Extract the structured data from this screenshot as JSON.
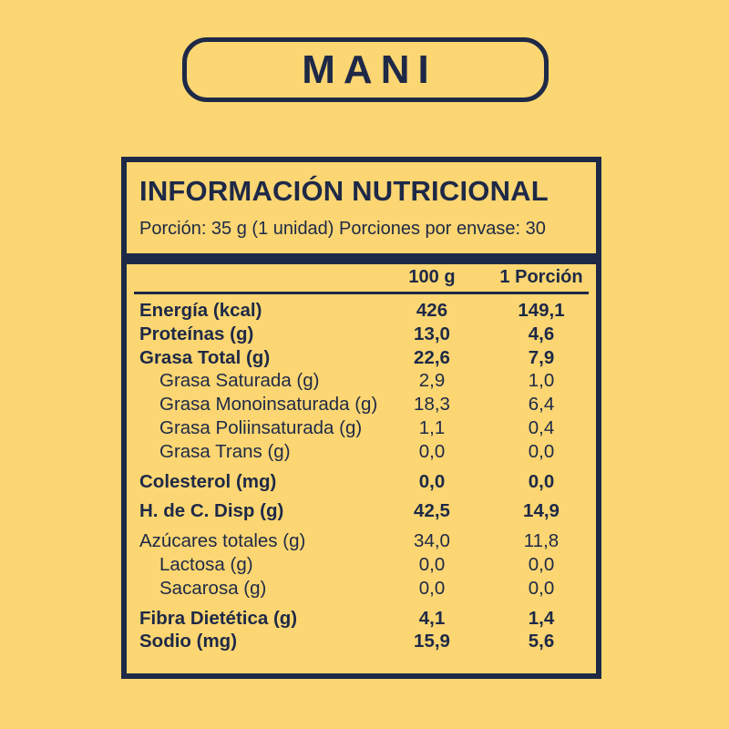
{
  "colors": {
    "background": "#fbd672",
    "ink": "#1e2947"
  },
  "header": {
    "title": "MANI"
  },
  "label": {
    "title": "INFORMACIÓN NUTRICIONAL",
    "serving_info": "Porción: 35 g (1 unidad) Porciones por envase: 30",
    "columns": [
      "100 g",
      "1 Porción"
    ],
    "rows": [
      {
        "label": "Energía (kcal)",
        "per_100g": "426",
        "per_portion": "149,1",
        "bold": true,
        "indent": 0,
        "gap": false
      },
      {
        "label": "Proteínas (g)",
        "per_100g": "13,0",
        "per_portion": "4,6",
        "bold": true,
        "indent": 0,
        "gap": false
      },
      {
        "label": "Grasa Total (g)",
        "per_100g": "22,6",
        "per_portion": "7,9",
        "bold": true,
        "indent": 0,
        "gap": false
      },
      {
        "label": "Grasa Saturada (g)",
        "per_100g": "2,9",
        "per_portion": "1,0",
        "bold": false,
        "indent": 1,
        "gap": false
      },
      {
        "label": "Grasa Monoinsaturada (g)",
        "per_100g": "18,3",
        "per_portion": "6,4",
        "bold": false,
        "indent": 1,
        "gap": false
      },
      {
        "label": "Grasa Poliinsaturada (g)",
        "per_100g": "1,1",
        "per_portion": "0,4",
        "bold": false,
        "indent": 1,
        "gap": false
      },
      {
        "label": "Grasa Trans (g)",
        "per_100g": "0,0",
        "per_portion": "0,0",
        "bold": false,
        "indent": 1,
        "gap": false
      },
      {
        "label": "Colesterol (mg)",
        "per_100g": "0,0",
        "per_portion": "0,0",
        "bold": true,
        "indent": 0,
        "gap": true
      },
      {
        "label": "H. de C. Disp (g)",
        "per_100g": "42,5",
        "per_portion": "14,9",
        "bold": true,
        "indent": 0,
        "gap": true
      },
      {
        "label": "Azúcares totales (g)",
        "per_100g": "34,0",
        "per_portion": "11,8",
        "bold": false,
        "indent": 0,
        "gap": true
      },
      {
        "label": "Lactosa (g)",
        "per_100g": "0,0",
        "per_portion": "0,0",
        "bold": false,
        "indent": 1,
        "gap": false
      },
      {
        "label": "Sacarosa (g)",
        "per_100g": "0,0",
        "per_portion": "0,0",
        "bold": false,
        "indent": 1,
        "gap": false
      },
      {
        "label": "Fibra Dietética (g)",
        "per_100g": "4,1",
        "per_portion": "1,4",
        "bold": true,
        "indent": 0,
        "gap": true
      },
      {
        "label": "Sodio (mg)",
        "per_100g": "15,9",
        "per_portion": "5,6",
        "bold": true,
        "indent": 0,
        "gap": false
      }
    ]
  }
}
